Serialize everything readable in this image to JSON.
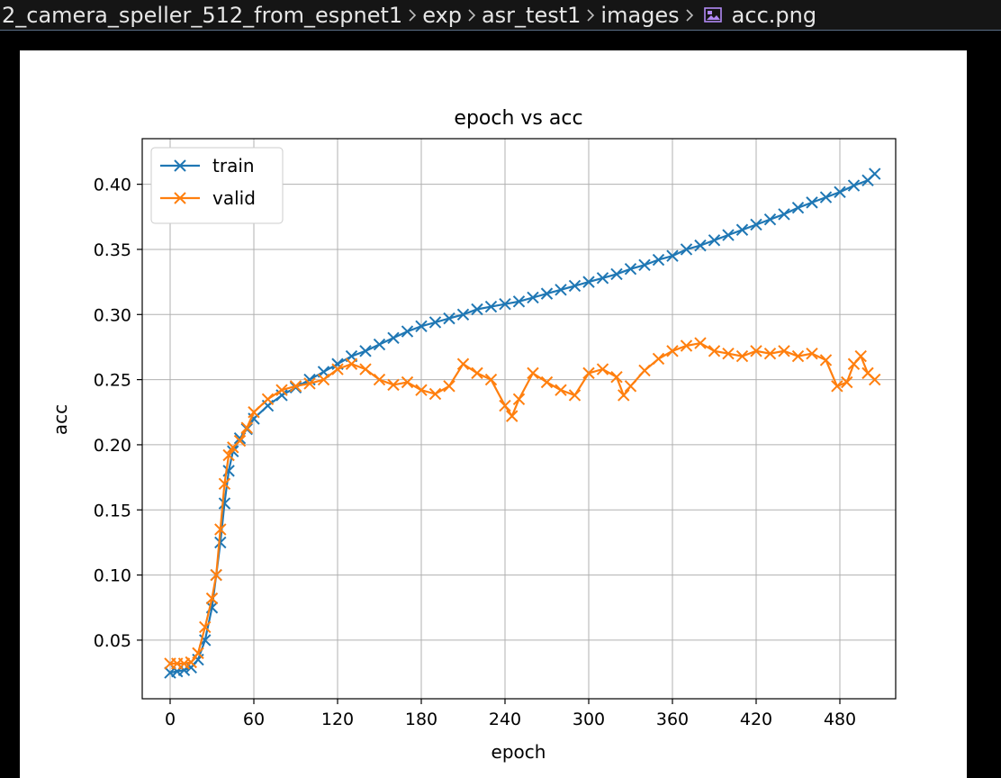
{
  "breadcrumb": {
    "items": [
      "2_camera_speller_512_from_espnet1",
      "exp",
      "asr_test1",
      "images",
      "acc.png"
    ],
    "separator_icon": "chevron-right-icon",
    "file_icon": "image-file-icon",
    "file_icon_color": "#b189f5"
  },
  "chart_data": {
    "type": "line",
    "title": "epoch vs acc",
    "xlabel": "epoch",
    "ylabel": "acc",
    "xlim": [
      -20,
      520
    ],
    "ylim": [
      0.005,
      0.435
    ],
    "xticks": [
      0,
      60,
      120,
      180,
      240,
      300,
      360,
      420,
      480
    ],
    "yticks": [
      0.05,
      0.1,
      0.15,
      0.2,
      0.25,
      0.3,
      0.35,
      0.4
    ],
    "grid": true,
    "legend_position": "upper-left",
    "marker": "x",
    "series": [
      {
        "name": "train",
        "color": "#1f77b4",
        "x": [
          0,
          5,
          10,
          15,
          20,
          25,
          30,
          33,
          36,
          39,
          42,
          45,
          50,
          55,
          60,
          70,
          80,
          90,
          100,
          110,
          120,
          130,
          140,
          150,
          160,
          170,
          180,
          190,
          200,
          210,
          220,
          230,
          240,
          250,
          260,
          270,
          280,
          290,
          300,
          310,
          320,
          330,
          340,
          350,
          360,
          370,
          380,
          390,
          400,
          410,
          420,
          430,
          440,
          450,
          460,
          470,
          480,
          490,
          500,
          505
        ],
        "y": [
          0.025,
          0.026,
          0.027,
          0.029,
          0.035,
          0.05,
          0.075,
          0.1,
          0.125,
          0.155,
          0.18,
          0.195,
          0.205,
          0.212,
          0.22,
          0.23,
          0.238,
          0.244,
          0.25,
          0.256,
          0.262,
          0.268,
          0.272,
          0.277,
          0.282,
          0.287,
          0.291,
          0.294,
          0.297,
          0.3,
          0.304,
          0.306,
          0.308,
          0.31,
          0.313,
          0.316,
          0.319,
          0.322,
          0.325,
          0.328,
          0.331,
          0.335,
          0.338,
          0.342,
          0.345,
          0.35,
          0.353,
          0.357,
          0.361,
          0.365,
          0.369,
          0.373,
          0.377,
          0.382,
          0.386,
          0.39,
          0.394,
          0.399,
          0.403,
          0.408
        ]
      },
      {
        "name": "valid",
        "color": "#ff7f0e",
        "x": [
          0,
          5,
          10,
          15,
          20,
          25,
          30,
          33,
          36,
          39,
          42,
          45,
          50,
          55,
          60,
          70,
          80,
          90,
          100,
          110,
          120,
          130,
          140,
          150,
          160,
          170,
          180,
          190,
          200,
          210,
          220,
          230,
          240,
          245,
          250,
          260,
          270,
          280,
          290,
          300,
          310,
          320,
          325,
          330,
          340,
          350,
          360,
          370,
          380,
          390,
          400,
          410,
          420,
          430,
          440,
          450,
          460,
          470,
          478,
          485,
          490,
          495,
          500,
          505
        ],
        "y": [
          0.032,
          0.032,
          0.032,
          0.033,
          0.04,
          0.06,
          0.082,
          0.1,
          0.135,
          0.17,
          0.192,
          0.198,
          0.203,
          0.213,
          0.225,
          0.235,
          0.242,
          0.245,
          0.247,
          0.25,
          0.258,
          0.262,
          0.258,
          0.25,
          0.246,
          0.248,
          0.242,
          0.239,
          0.245,
          0.262,
          0.255,
          0.25,
          0.23,
          0.222,
          0.235,
          0.255,
          0.248,
          0.242,
          0.238,
          0.255,
          0.258,
          0.252,
          0.238,
          0.245,
          0.257,
          0.266,
          0.272,
          0.276,
          0.278,
          0.272,
          0.27,
          0.268,
          0.272,
          0.27,
          0.272,
          0.268,
          0.27,
          0.265,
          0.245,
          0.248,
          0.262,
          0.268,
          0.255,
          0.25
        ]
      }
    ]
  }
}
